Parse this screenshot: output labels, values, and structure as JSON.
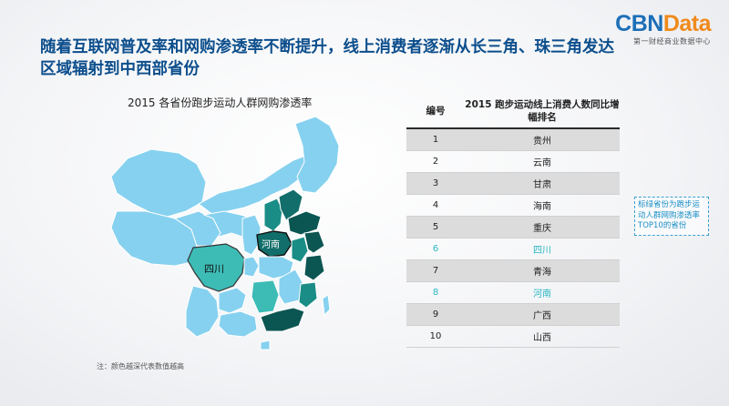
{
  "logo": {
    "brand_part1": "CBN",
    "brand_part2": "Data",
    "subtitle": "第一财经商业数据中心"
  },
  "headline": "随着互联网普及率和网购渗透率不断提升，线上消费者逐渐从长三角、珠三角发达区域辐射到中西部省份",
  "map": {
    "title": "2015 各省份跑步运动人群网购渗透率",
    "labels": {
      "sichuan": "四川",
      "henan": "河南"
    },
    "note": "注：颜色越深代表数值越高"
  },
  "table": {
    "col_rank": "编号",
    "col_title": "2015 跑步运动线上消费人数同比增幅排名",
    "rows": [
      {
        "rank": "1",
        "province": "贵州"
      },
      {
        "rank": "2",
        "province": "云南"
      },
      {
        "rank": "3",
        "province": "甘肃"
      },
      {
        "rank": "4",
        "province": "海南"
      },
      {
        "rank": "5",
        "province": "重庆"
      },
      {
        "rank": "6",
        "province": "四川"
      },
      {
        "rank": "7",
        "province": "青海"
      },
      {
        "rank": "8",
        "province": "河南"
      },
      {
        "rank": "9",
        "province": "广西"
      },
      {
        "rank": "10",
        "province": "山西"
      }
    ]
  },
  "callout": "标绿省份为跑步运动人群网购渗透率TOP10的省份",
  "colors": {
    "title_blue": "#0c4e8c",
    "light": "#86d1ef",
    "mid": "#3dbcb6",
    "dark": "#1a8d86",
    "darker": "#116e6a",
    "darkest": "#0b5552",
    "highlight_text": "#2ab7c4"
  }
}
